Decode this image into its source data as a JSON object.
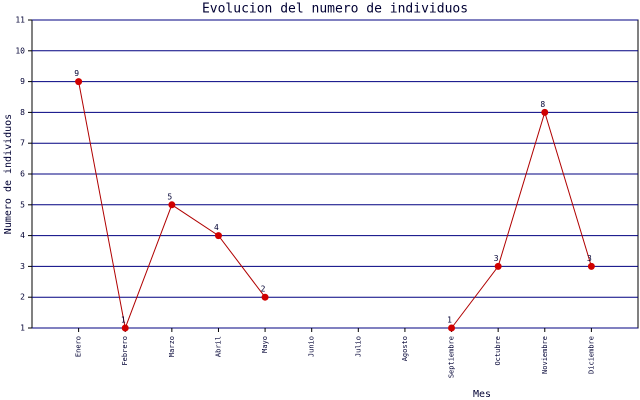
{
  "chart_data": {
    "type": "line",
    "title": "Evolucion del numero de individuos",
    "x_label": "Mes",
    "y_label": "Numero de individuos",
    "categories": [
      "Enero",
      "Febrero",
      "Marzo",
      "Abril",
      "Mayo",
      "Junio",
      "Julio",
      "Agosto",
      "Septiembre",
      "Octubre",
      "Noviembre",
      "Diciembre"
    ],
    "values": [
      9,
      1,
      5,
      4,
      2,
      null,
      null,
      null,
      1,
      3,
      8,
      3
    ],
    "color": "#b00000",
    "marker_color": "#d00000",
    "ylim": [
      1,
      11
    ],
    "yticks": [
      1,
      2,
      3,
      4,
      5,
      6,
      7,
      8,
      9,
      10,
      11
    ],
    "grid": true
  }
}
